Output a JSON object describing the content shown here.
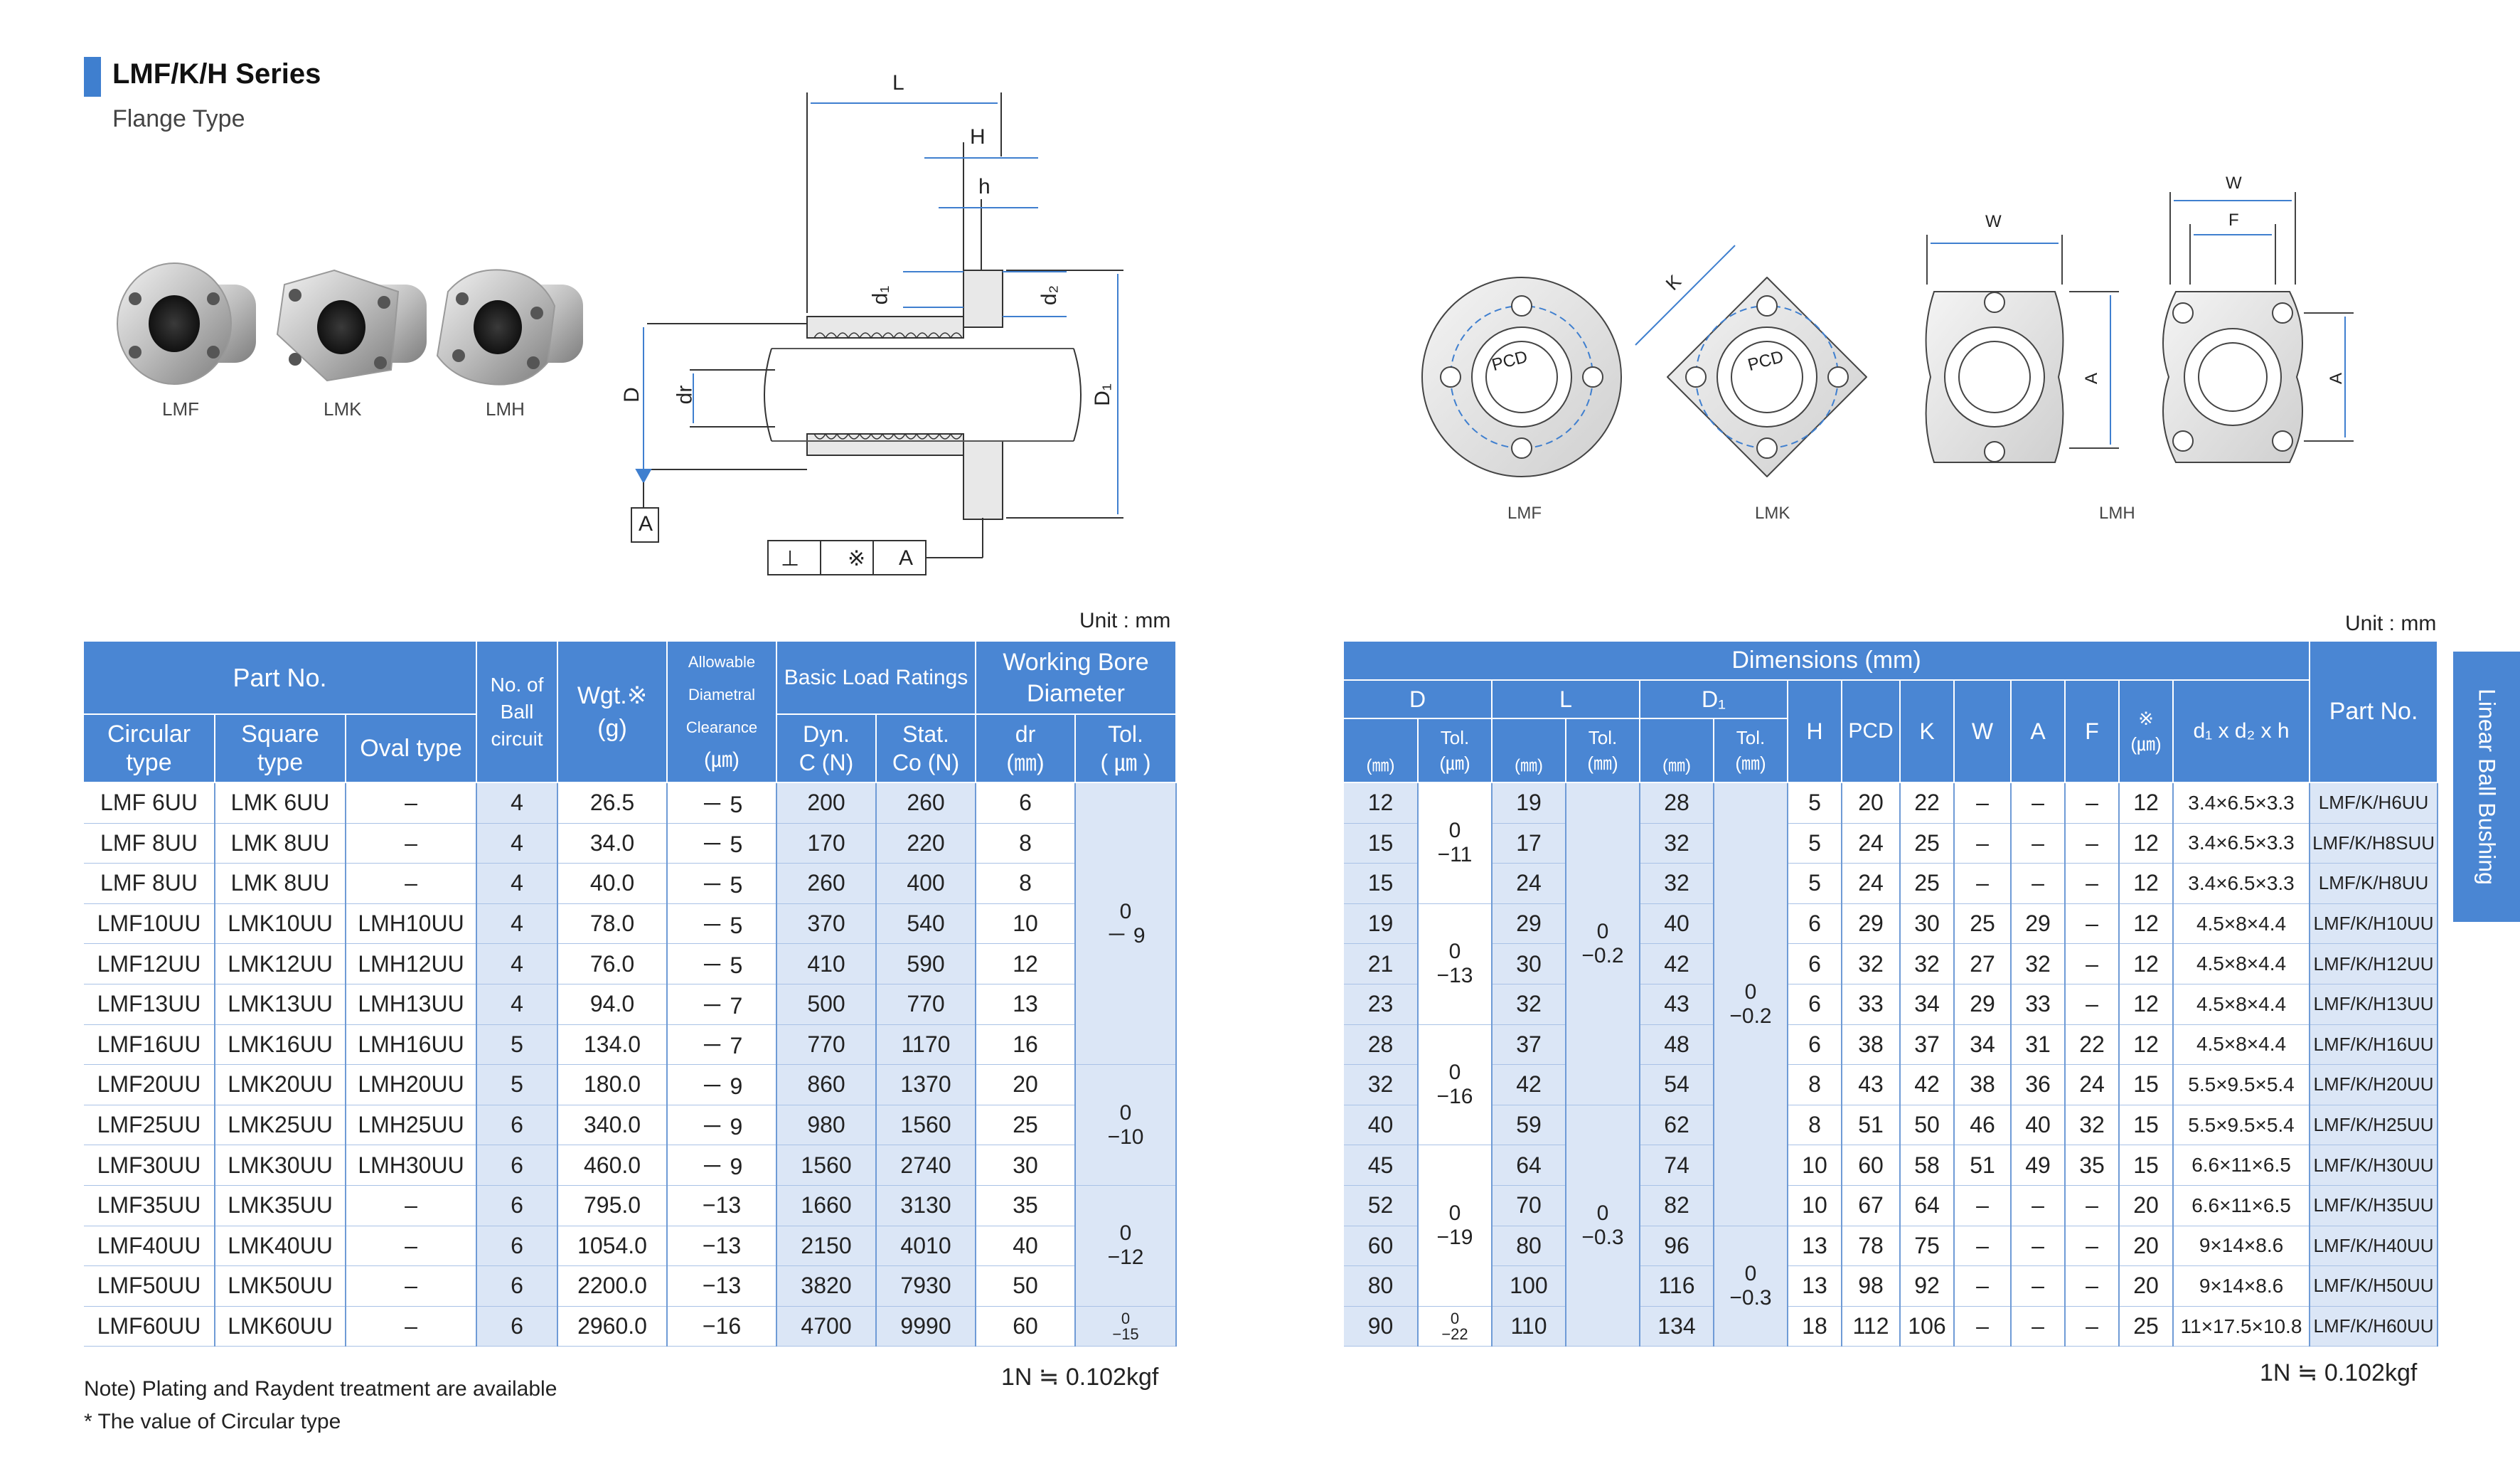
{
  "header": {
    "title": "LMF/K/H Series",
    "subtitle": "Flange Type"
  },
  "photos": {
    "labels": [
      "LMF",
      "LMK",
      "LMH"
    ]
  },
  "section_drawing": {
    "labels": {
      "L": "L",
      "H": "H",
      "h": "h",
      "d1": "d₁",
      "d2": "d₂",
      "D": "D",
      "dr": "dr",
      "D1": "D₁",
      "A": "A",
      "perp": "⊥",
      "mark": "※"
    }
  },
  "front_views": {
    "labels": [
      "LMF",
      "LMK",
      "LMH"
    ],
    "pcd": "PCD",
    "K": "K",
    "W": "W",
    "F": "F",
    "A": "A"
  },
  "left_table": {
    "unit": "Unit : mm",
    "headers": {
      "part_no": "Part No.",
      "circular": "Circular type",
      "square": "Square type",
      "oval": "Oval type",
      "ball_circuit": "No. of Ball circuit",
      "wgt": "Wgt.※",
      "wgt_unit": "(g)",
      "clearance_1": "Allowable",
      "clearance_2": "Diametral",
      "clearance_3": "Clearance",
      "clearance_unit": "(㎛)",
      "load": "Basic Load Ratings",
      "dyn_1": "Dyn.",
      "dyn_2": "C (N)",
      "stat_1": "Stat.",
      "stat_2": "Co (N)",
      "bore": "Working Bore Diameter",
      "dr": "dr",
      "dr_unit": "(㎜)",
      "tol": "Tol.",
      "tol_unit": "( ㎛ )"
    },
    "rows": [
      {
        "c": "LMF  6UU",
        "s": "LMK  6UU",
        "o": "–",
        "n": "4",
        "w": "26.5",
        "cl": "－ 5",
        "dyn": "200",
        "st": "260",
        "dr": "6"
      },
      {
        "c": "LMF  8UU",
        "s": "LMK  8UU",
        "o": "–",
        "n": "4",
        "w": "34.0",
        "cl": "－ 5",
        "dyn": "170",
        "st": "220",
        "dr": "8"
      },
      {
        "c": "LMF  8UU",
        "s": "LMK  8UU",
        "o": "–",
        "n": "4",
        "w": "40.0",
        "cl": "－ 5",
        "dyn": "260",
        "st": "400",
        "dr": "8"
      },
      {
        "c": "LMF10UU",
        "s": "LMK10UU",
        "o": "LMH10UU",
        "n": "4",
        "w": "78.0",
        "cl": "－ 5",
        "dyn": "370",
        "st": "540",
        "dr": "10"
      },
      {
        "c": "LMF12UU",
        "s": "LMK12UU",
        "o": "LMH12UU",
        "n": "4",
        "w": "76.0",
        "cl": "－ 5",
        "dyn": "410",
        "st": "590",
        "dr": "12"
      },
      {
        "c": "LMF13UU",
        "s": "LMK13UU",
        "o": "LMH13UU",
        "n": "4",
        "w": "94.0",
        "cl": "－ 7",
        "dyn": "500",
        "st": "770",
        "dr": "13"
      },
      {
        "c": "LMF16UU",
        "s": "LMK16UU",
        "o": "LMH16UU",
        "n": "5",
        "w": "134.0",
        "cl": "－ 7",
        "dyn": "770",
        "st": "1170",
        "dr": "16"
      },
      {
        "c": "LMF20UU",
        "s": "LMK20UU",
        "o": "LMH20UU",
        "n": "5",
        "w": "180.0",
        "cl": "－ 9",
        "dyn": "860",
        "st": "1370",
        "dr": "20"
      },
      {
        "c": "LMF25UU",
        "s": "LMK25UU",
        "o": "LMH25UU",
        "n": "6",
        "w": "340.0",
        "cl": "－ 9",
        "dyn": "980",
        "st": "1560",
        "dr": "25"
      },
      {
        "c": "LMF30UU",
        "s": "LMK30UU",
        "o": "LMH30UU",
        "n": "6",
        "w": "460.0",
        "cl": "－ 9",
        "dyn": "1560",
        "st": "2740",
        "dr": "30"
      },
      {
        "c": "LMF35UU",
        "s": "LMK35UU",
        "o": "–",
        "n": "6",
        "w": "795.0",
        "cl": "−13",
        "dyn": "1660",
        "st": "3130",
        "dr": "35"
      },
      {
        "c": "LMF40UU",
        "s": "LMK40UU",
        "o": "–",
        "n": "6",
        "w": "1054.0",
        "cl": "−13",
        "dyn": "2150",
        "st": "4010",
        "dr": "40"
      },
      {
        "c": "LMF50UU",
        "s": "LMK50UU",
        "o": "–",
        "n": "6",
        "w": "2200.0",
        "cl": "−13",
        "dyn": "3820",
        "st": "7930",
        "dr": "50"
      },
      {
        "c": "LMF60UU",
        "s": "LMK60UU",
        "o": "–",
        "n": "6",
        "w": "2960.0",
        "cl": "−16",
        "dyn": "4700",
        "st": "9990",
        "dr": "60"
      }
    ],
    "tol_groups": [
      {
        "top": "0",
        "bottom": "－ 9",
        "span": 7
      },
      {
        "top": "0",
        "bottom": "−10",
        "span": 3
      },
      {
        "top": "0",
        "bottom": "−12",
        "span": 3
      },
      {
        "top": "0",
        "bottom": "−15",
        "span": 1
      }
    ],
    "note": "Note) Plating and Raydent treatment are available",
    "footnote": "* The value of Circular type",
    "conversion": "1N ≒ 0.102kgf"
  },
  "right_table": {
    "unit": "Unit : mm",
    "headers": {
      "dimensions": "Dimensions (mm)",
      "D": "D",
      "L": "L",
      "D1": "D₁",
      "tol": "Tol.",
      "mm": "(㎜)",
      "um": "(㎛)",
      "H": "H",
      "PCD": "PCD",
      "K": "K",
      "W": "W",
      "A": "A",
      "F": "F",
      "mark": "※",
      "bolt": "d₁ x d₂ x h",
      "part_no": "Part No."
    },
    "rows": [
      {
        "D": "12",
        "L": "19",
        "D1": "28",
        "H": "5",
        "PCD": "20",
        "K": "22",
        "W": "–",
        "A": "–",
        "F": "–",
        "m": "12",
        "b": "3.4×6.5×3.3",
        "p": "LMF/K/H6UU"
      },
      {
        "D": "15",
        "L": "17",
        "D1": "32",
        "H": "5",
        "PCD": "24",
        "K": "25",
        "W": "–",
        "A": "–",
        "F": "–",
        "m": "12",
        "b": "3.4×6.5×3.3",
        "p": "LMF/K/H8SUU"
      },
      {
        "D": "15",
        "L": "24",
        "D1": "32",
        "H": "5",
        "PCD": "24",
        "K": "25",
        "W": "–",
        "A": "–",
        "F": "–",
        "m": "12",
        "b": "3.4×6.5×3.3",
        "p": "LMF/K/H8UU"
      },
      {
        "D": "19",
        "L": "29",
        "D1": "40",
        "H": "6",
        "PCD": "29",
        "K": "30",
        "W": "25",
        "A": "29",
        "F": "–",
        "m": "12",
        "b": "4.5×8×4.4",
        "p": "LMF/K/H10UU"
      },
      {
        "D": "21",
        "L": "30",
        "D1": "42",
        "H": "6",
        "PCD": "32",
        "K": "32",
        "W": "27",
        "A": "32",
        "F": "–",
        "m": "12",
        "b": "4.5×8×4.4",
        "p": "LMF/K/H12UU"
      },
      {
        "D": "23",
        "L": "32",
        "D1": "43",
        "H": "6",
        "PCD": "33",
        "K": "34",
        "W": "29",
        "A": "33",
        "F": "–",
        "m": "12",
        "b": "4.5×8×4.4",
        "p": "LMF/K/H13UU"
      },
      {
        "D": "28",
        "L": "37",
        "D1": "48",
        "H": "6",
        "PCD": "38",
        "K": "37",
        "W": "34",
        "A": "31",
        "F": "22",
        "m": "12",
        "b": "4.5×8×4.4",
        "p": "LMF/K/H16UU"
      },
      {
        "D": "32",
        "L": "42",
        "D1": "54",
        "H": "8",
        "PCD": "43",
        "K": "42",
        "W": "38",
        "A": "36",
        "F": "24",
        "m": "15",
        "b": "5.5×9.5×5.4",
        "p": "LMF/K/H20UU"
      },
      {
        "D": "40",
        "L": "59",
        "D1": "62",
        "H": "8",
        "PCD": "51",
        "K": "50",
        "W": "46",
        "A": "40",
        "F": "32",
        "m": "15",
        "b": "5.5×9.5×5.4",
        "p": "LMF/K/H25UU"
      },
      {
        "D": "45",
        "L": "64",
        "D1": "74",
        "H": "10",
        "PCD": "60",
        "K": "58",
        "W": "51",
        "A": "49",
        "F": "35",
        "m": "15",
        "b": "6.6×11×6.5",
        "p": "LMF/K/H30UU"
      },
      {
        "D": "52",
        "L": "70",
        "D1": "82",
        "H": "10",
        "PCD": "67",
        "K": "64",
        "W": "–",
        "A": "–",
        "F": "–",
        "m": "20",
        "b": "6.6×11×6.5",
        "p": "LMF/K/H35UU"
      },
      {
        "D": "60",
        "L": "80",
        "D1": "96",
        "H": "13",
        "PCD": "78",
        "K": "75",
        "W": "–",
        "A": "–",
        "F": "–",
        "m": "20",
        "b": "9×14×8.6",
        "p": "LMF/K/H40UU"
      },
      {
        "D": "80",
        "L": "100",
        "D1": "116",
        "H": "13",
        "PCD": "98",
        "K": "92",
        "W": "–",
        "A": "–",
        "F": "–",
        "m": "20",
        "b": "9×14×8.6",
        "p": "LMF/K/H50UU"
      },
      {
        "D": "90",
        "L": "110",
        "D1": "134",
        "H": "18",
        "PCD": "112",
        "K": "106",
        "W": "–",
        "A": "–",
        "F": "–",
        "m": "25",
        "b": "11×17.5×10.8",
        "p": "LMF/K/H60UU"
      }
    ],
    "d_tol_groups": [
      {
        "top": "0",
        "bottom": "−11",
        "span": 3
      },
      {
        "top": "0",
        "bottom": "−13",
        "span": 3
      },
      {
        "top": "0",
        "bottom": "−16",
        "span": 3
      },
      {
        "top": "0",
        "bottom": "−19",
        "span": 4
      },
      {
        "top": "0",
        "bottom": "−22",
        "span": 1
      }
    ],
    "l_tol_groups": [
      {
        "top": "0",
        "bottom": "−0.2",
        "span": 8
      },
      {
        "top": "0",
        "bottom": "−0.3",
        "span": 6
      }
    ],
    "d1_tol_groups": [
      {
        "top": "0",
        "bottom": "−0.2",
        "span": 11
      },
      {
        "top": "0",
        "bottom": "−0.3",
        "span": 3
      }
    ],
    "conversion": "1N ≒ 0.102kgf"
  },
  "side_tab": {
    "label": "Linear Ball Bushing"
  }
}
